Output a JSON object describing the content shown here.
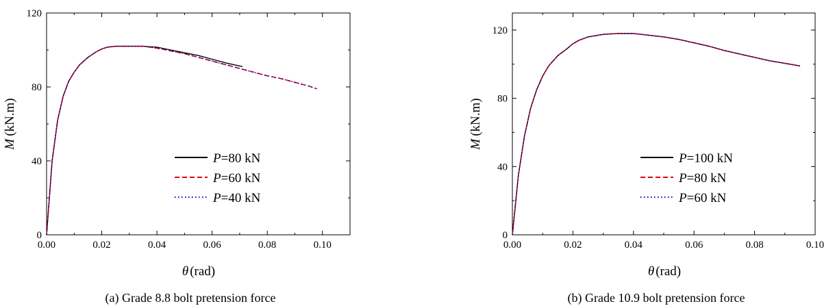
{
  "chart_data": [
    {
      "type": "line",
      "xlabel_symbol": "θ",
      "xlabel_unit": "(rad)",
      "ylabel_symbol": "M",
      "ylabel_unit": "(kN.m)",
      "xlim": [
        0,
        0.11
      ],
      "ylim": [
        0,
        120
      ],
      "xticks": [
        "0.00",
        "0.02",
        "0.04",
        "0.06",
        "0.08",
        "0.10"
      ],
      "yticks": [
        "0",
        "40",
        "80",
        "120"
      ],
      "caption": "(a) Grade 8.8 bolt pretension force",
      "legend_position": "right-center",
      "series": [
        {
          "name": "P=80 kN",
          "name_symbol": "P",
          "name_value": "=80 kN",
          "color": "#000000",
          "style": "solid",
          "x": [
            0,
            0.002,
            0.004,
            0.006,
            0.008,
            0.01,
            0.012,
            0.015,
            0.018,
            0.02,
            0.022,
            0.025,
            0.03,
            0.035,
            0.04,
            0.045,
            0.05,
            0.055,
            0.06,
            0.065,
            0.071
          ],
          "y": [
            0,
            40,
            62,
            75,
            83,
            88,
            92,
            96,
            99,
            100.5,
            101.5,
            102,
            102,
            102,
            101.5,
            100,
            98.5,
            97,
            95,
            93,
            91
          ]
        },
        {
          "name": "P=60 kN",
          "name_symbol": "P",
          "name_value": "=60 kN",
          "color": "#e00000",
          "style": "dashed",
          "x": [
            0,
            0.002,
            0.004,
            0.006,
            0.008,
            0.01,
            0.012,
            0.015,
            0.018,
            0.02,
            0.022,
            0.025,
            0.03,
            0.035,
            0.04,
            0.045,
            0.05,
            0.055,
            0.06,
            0.065,
            0.07,
            0.075,
            0.08,
            0.085,
            0.09,
            0.095,
            0.098
          ],
          "y": [
            0,
            40,
            62,
            75,
            83,
            88,
            92,
            96,
            99,
            100.5,
            101.5,
            102,
            102,
            102,
            101,
            99.5,
            98,
            96,
            94,
            92,
            90,
            88,
            86,
            84.5,
            82.5,
            80.5,
            79
          ]
        },
        {
          "name": "P=40 kN",
          "name_symbol": "P",
          "name_value": "=40 kN",
          "color": "#0000cc",
          "style": "dotted",
          "x": [
            0,
            0.002,
            0.004,
            0.006,
            0.008,
            0.01,
            0.012,
            0.015,
            0.018,
            0.02,
            0.022,
            0.025,
            0.03,
            0.035,
            0.04,
            0.045,
            0.05,
            0.055,
            0.06,
            0.065,
            0.07,
            0.075,
            0.08,
            0.085,
            0.09,
            0.095,
            0.098
          ],
          "y": [
            0,
            40,
            62,
            75,
            83,
            88,
            92,
            96,
            99,
            100.5,
            101.5,
            102,
            102,
            102,
            101,
            99.5,
            98,
            96,
            94,
            92,
            90,
            88,
            86,
            84.5,
            82.5,
            80.5,
            79
          ]
        }
      ]
    },
    {
      "type": "line",
      "xlabel_symbol": "θ",
      "xlabel_unit": "(rad)",
      "ylabel_symbol": "M",
      "ylabel_unit": "(kN.m)",
      "xlim": [
        0,
        0.1
      ],
      "ylim": [
        0,
        130
      ],
      "xticks": [
        "0.00",
        "0.02",
        "0.04",
        "0.06",
        "0.08",
        "0.10"
      ],
      "yticks": [
        "0",
        "40",
        "80",
        "120"
      ],
      "caption": "(b) Grade 10.9 bolt pretension force",
      "legend_position": "right-center",
      "series": [
        {
          "name": "P=100 kN",
          "name_symbol": "P",
          "name_value": "=100 kN",
          "color": "#000000",
          "style": "solid",
          "x": [
            0,
            0.002,
            0.004,
            0.006,
            0.008,
            0.01,
            0.012,
            0.015,
            0.018,
            0.02,
            0.022,
            0.025,
            0.03,
            0.035,
            0.04,
            0.045,
            0.05,
            0.055,
            0.06,
            0.065,
            0.07,
            0.075,
            0.08,
            0.085,
            0.09,
            0.095
          ],
          "y": [
            0,
            35,
            58,
            74,
            85,
            93,
            99,
            105,
            109,
            112,
            114,
            116,
            117.5,
            118,
            118,
            117,
            116,
            114.5,
            112.5,
            110.5,
            108,
            106,
            104,
            102,
            100.5,
            99
          ]
        },
        {
          "name": "P=80 kN",
          "name_symbol": "P",
          "name_value": "=80 kN",
          "color": "#e00000",
          "style": "dashed",
          "x": [
            0,
            0.002,
            0.004,
            0.006,
            0.008,
            0.01,
            0.012,
            0.015,
            0.018,
            0.02,
            0.022,
            0.025,
            0.03,
            0.035,
            0.04,
            0.045,
            0.05,
            0.055,
            0.06,
            0.065,
            0.07,
            0.075,
            0.08,
            0.085,
            0.09,
            0.095
          ],
          "y": [
            0,
            35,
            58,
            74,
            85,
            93,
            99,
            105,
            109,
            112,
            114,
            116,
            117.5,
            118,
            118,
            117,
            116,
            114.5,
            112.5,
            110.5,
            108,
            106,
            104,
            102,
            100.5,
            99
          ]
        },
        {
          "name": "P=60 kN",
          "name_symbol": "P",
          "name_value": "=60 kN",
          "color": "#0000cc",
          "style": "dotted",
          "x": [
            0,
            0.002,
            0.004,
            0.006,
            0.008,
            0.01,
            0.012,
            0.015,
            0.018,
            0.02,
            0.022,
            0.025,
            0.03,
            0.035,
            0.04,
            0.045,
            0.05,
            0.055,
            0.06,
            0.065,
            0.07,
            0.075,
            0.08,
            0.085,
            0.09,
            0.095
          ],
          "y": [
            0,
            35,
            58,
            74,
            85,
            93,
            99,
            105,
            109,
            112,
            114,
            116,
            117.5,
            118,
            118,
            117,
            116,
            114.5,
            112.5,
            110.5,
            108,
            106,
            104,
            102,
            100.5,
            99
          ]
        }
      ]
    }
  ]
}
